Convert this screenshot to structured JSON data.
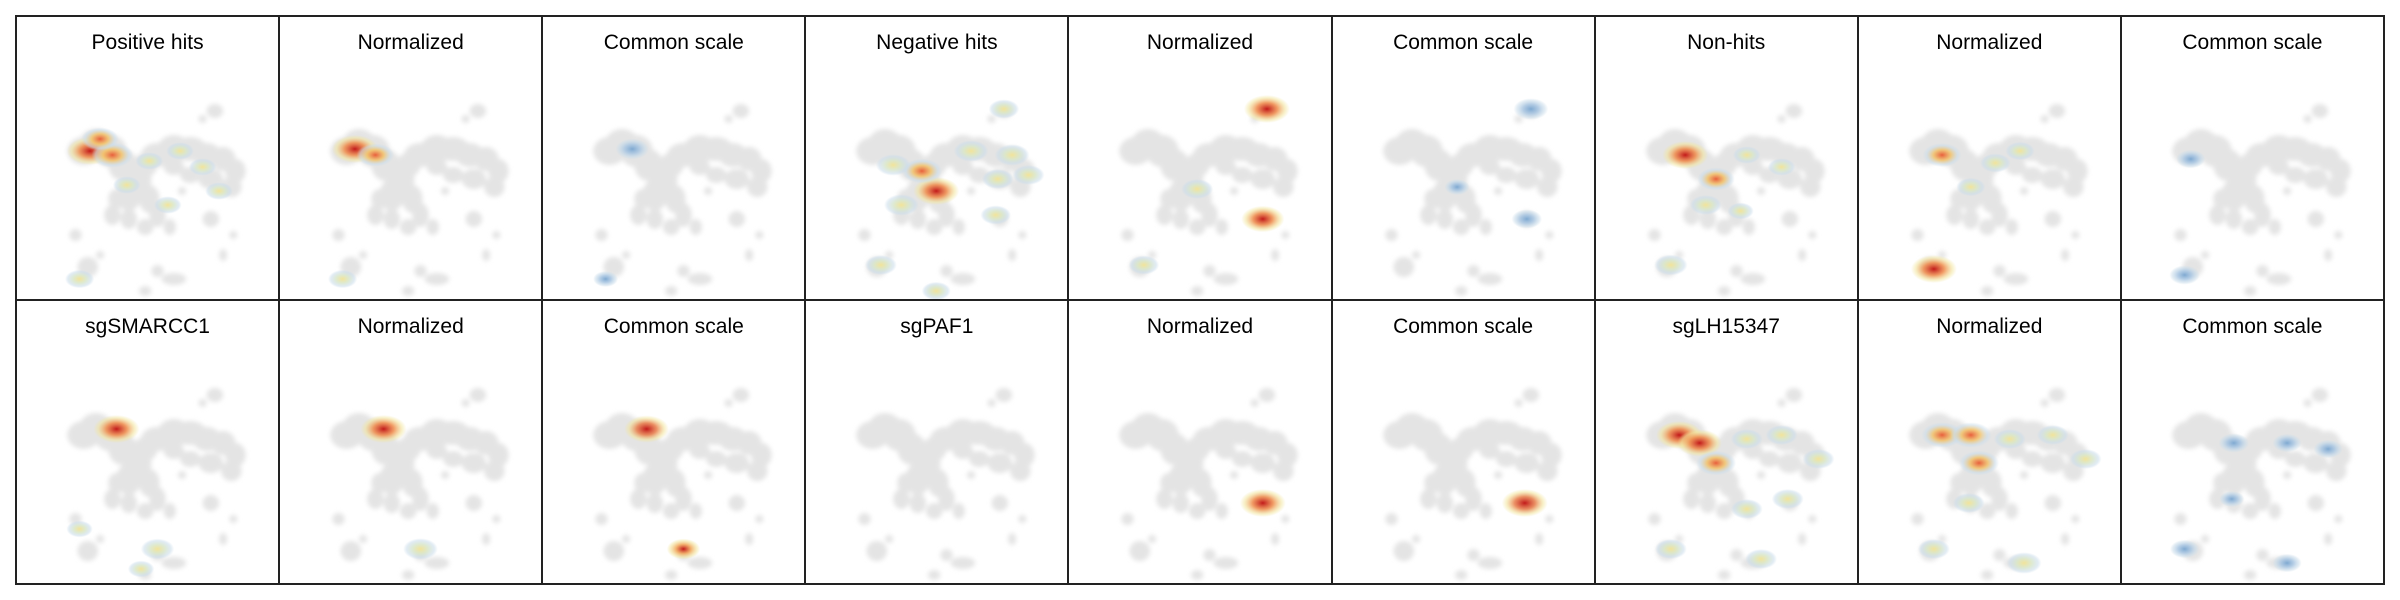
{
  "figure": {
    "rows": [
      [
        "Positive hits",
        "Normalized",
        "Common scale",
        "Negative hits",
        "Normalized",
        "Common scale",
        "Non-hits",
        "Normalized",
        "Common scale"
      ],
      [
        "sgSMARCC1",
        "Normalized",
        "Common scale",
        "sgPAF1",
        "Normalized",
        "Common scale",
        "sgLH15347",
        "Normalized",
        "Common scale"
      ]
    ]
  },
  "chart_data": {
    "type": "heatmap",
    "description_kind": "UMAP density overlays (2 rows x 9 panels)",
    "colors": {
      "background_cells": "#e4e4e4",
      "low": "#c9dcea",
      "mid": "#f2e49a",
      "high": "#c21a1a",
      "common_scale": "#7fa9d1"
    },
    "panels": [
      {
        "title": "Positive hits",
        "mode": "raw",
        "hotspots": [
          [
            0.17,
            0.28,
            1.0
          ],
          [
            0.28,
            0.3,
            0.85
          ],
          [
            0.22,
            0.22,
            0.7
          ],
          [
            0.35,
            0.45,
            0.35
          ],
          [
            0.46,
            0.33,
            0.35
          ],
          [
            0.61,
            0.28,
            0.35
          ],
          [
            0.72,
            0.36,
            0.35
          ],
          [
            0.12,
            0.92,
            0.4
          ],
          [
            0.55,
            0.55,
            0.35
          ],
          [
            0.8,
            0.48,
            0.35
          ]
        ]
      },
      {
        "title": "Normalized",
        "mode": "normalized",
        "hotspots": [
          [
            0.18,
            0.27,
            1.0
          ],
          [
            0.28,
            0.3,
            0.7
          ],
          [
            0.12,
            0.92,
            0.4
          ]
        ]
      },
      {
        "title": "Common scale",
        "mode": "common",
        "hotspots": [
          [
            0.25,
            0.27,
            0.55
          ],
          [
            0.12,
            0.92,
            0.25
          ]
        ]
      },
      {
        "title": "Negative hits",
        "mode": "raw",
        "hotspots": [
          [
            0.45,
            0.48,
            1.0
          ],
          [
            0.38,
            0.38,
            0.8
          ],
          [
            0.24,
            0.35,
            0.6
          ],
          [
            0.62,
            0.28,
            0.6
          ],
          [
            0.82,
            0.3,
            0.6
          ],
          [
            0.9,
            0.4,
            0.5
          ],
          [
            0.75,
            0.42,
            0.5
          ],
          [
            0.28,
            0.55,
            0.6
          ],
          [
            0.18,
            0.85,
            0.5
          ],
          [
            0.74,
            0.6,
            0.45
          ],
          [
            0.45,
            0.98,
            0.4
          ],
          [
            0.78,
            0.07,
            0.45
          ]
        ]
      },
      {
        "title": "Normalized",
        "mode": "normalized",
        "hotspots": [
          [
            0.78,
            0.07,
            1.0
          ],
          [
            0.76,
            0.62,
            0.9
          ],
          [
            0.44,
            0.47,
            0.5
          ],
          [
            0.18,
            0.85,
            0.45
          ]
        ]
      },
      {
        "title": "Common scale",
        "mode": "common",
        "hotspots": [
          [
            0.78,
            0.07,
            0.6
          ],
          [
            0.76,
            0.62,
            0.45
          ],
          [
            0.42,
            0.46,
            0.25
          ]
        ]
      },
      {
        "title": "Non-hits",
        "mode": "raw",
        "hotspots": [
          [
            0.25,
            0.3,
            1.0
          ],
          [
            0.4,
            0.42,
            0.7
          ],
          [
            0.35,
            0.55,
            0.5
          ],
          [
            0.55,
            0.3,
            0.35
          ],
          [
            0.72,
            0.36,
            0.35
          ],
          [
            0.18,
            0.85,
            0.55
          ],
          [
            0.52,
            0.58,
            0.3
          ]
        ]
      },
      {
        "title": "Normalized",
        "mode": "normalized",
        "hotspots": [
          [
            0.18,
            0.87,
            1.0
          ],
          [
            0.22,
            0.3,
            0.75
          ],
          [
            0.48,
            0.34,
            0.45
          ],
          [
            0.6,
            0.28,
            0.4
          ],
          [
            0.36,
            0.46,
            0.4
          ]
        ]
      },
      {
        "title": "Common scale",
        "mode": "common",
        "hotspots": [
          [
            0.15,
            0.32,
            0.4
          ],
          [
            0.12,
            0.9,
            0.45
          ]
        ]
      },
      {
        "title": "sgSMARCC1",
        "mode": "raw",
        "hotspots": [
          [
            0.3,
            0.25,
            1.0
          ],
          [
            0.5,
            0.85,
            0.55
          ],
          [
            0.12,
            0.75,
            0.3
          ],
          [
            0.42,
            0.95,
            0.3
          ]
        ]
      },
      {
        "title": "Normalized",
        "mode": "normalized",
        "hotspots": [
          [
            0.32,
            0.25,
            1.0
          ],
          [
            0.5,
            0.85,
            0.6
          ]
        ]
      },
      {
        "title": "Common scale",
        "mode": "common_high",
        "hotspots": [
          [
            0.32,
            0.25,
            0.95
          ],
          [
            0.5,
            0.85,
            0.55
          ]
        ]
      },
      {
        "title": "sgPAF1",
        "mode": "raw",
        "hotspots": []
      },
      {
        "title": "Normalized",
        "mode": "normalized",
        "hotspots": [
          [
            0.76,
            0.62,
            1.0
          ]
        ]
      },
      {
        "title": "Common scale",
        "mode": "common_high",
        "hotspots": [
          [
            0.75,
            0.62,
            1.0
          ]
        ]
      },
      {
        "title": "sgLH15347",
        "mode": "raw",
        "hotspots": [
          [
            0.22,
            0.28,
            1.0
          ],
          [
            0.32,
            0.32,
            0.95
          ],
          [
            0.4,
            0.42,
            0.8
          ],
          [
            0.55,
            0.3,
            0.5
          ],
          [
            0.72,
            0.28,
            0.5
          ],
          [
            0.9,
            0.4,
            0.5
          ],
          [
            0.18,
            0.85,
            0.5
          ],
          [
            0.55,
            0.65,
            0.5
          ],
          [
            0.75,
            0.6,
            0.5
          ],
          [
            0.62,
            0.9,
            0.5
          ]
        ]
      },
      {
        "title": "Normalized",
        "mode": "normalized",
        "hotspots": [
          [
            0.22,
            0.28,
            0.85
          ],
          [
            0.36,
            0.28,
            0.85
          ],
          [
            0.4,
            0.42,
            0.8
          ],
          [
            0.55,
            0.3,
            0.5
          ],
          [
            0.76,
            0.28,
            0.5
          ],
          [
            0.92,
            0.4,
            0.5
          ],
          [
            0.18,
            0.85,
            0.5
          ],
          [
            0.35,
            0.62,
            0.5
          ],
          [
            0.62,
            0.92,
            0.6
          ]
        ]
      },
      {
        "title": "Common scale",
        "mode": "common",
        "hotspots": [
          [
            0.36,
            0.32,
            0.45
          ],
          [
            0.62,
            0.32,
            0.4
          ],
          [
            0.82,
            0.35,
            0.4
          ],
          [
            0.12,
            0.85,
            0.4
          ],
          [
            0.62,
            0.92,
            0.4
          ],
          [
            0.35,
            0.6,
            0.25
          ]
        ]
      }
    ]
  }
}
